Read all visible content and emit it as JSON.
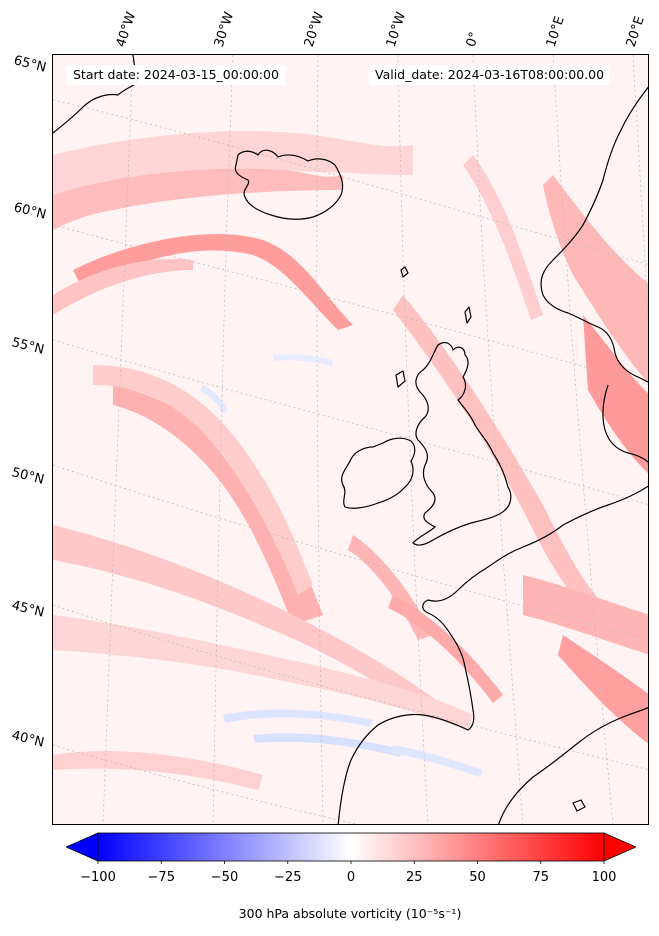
{
  "map": {
    "start_date_label": "Start date: 2024-03-15_00:00:00",
    "valid_date_label": "Valid_date: 2024-03-16T08:00:00.00",
    "lat_labels": [
      "65°N",
      "60°N",
      "55°N",
      "50°N",
      "45°N",
      "40°N"
    ],
    "lon_labels": [
      "40°W",
      "30°W",
      "20°W",
      "10°W",
      "0°",
      "10°E",
      "20°E"
    ],
    "field": "300 hPa absolute vorticity",
    "coastline_color": "#000000",
    "gridline_color": "#b0b0b0"
  },
  "colorbar": {
    "min": -100,
    "max": 100,
    "ticks": [
      -100,
      -75,
      -50,
      -25,
      0,
      25,
      50,
      75,
      100
    ],
    "tick_labels": [
      "−100",
      "−75",
      "−50",
      "−25",
      "0",
      "25",
      "50",
      "75",
      "100"
    ],
    "label_html": "300 hPa absolute vorticity (10⁻⁵s⁻¹)",
    "colormap": "bwr",
    "low_color": "#0000ff",
    "mid_color": "#ffffff",
    "high_color": "#ff0000",
    "extend": "both"
  }
}
